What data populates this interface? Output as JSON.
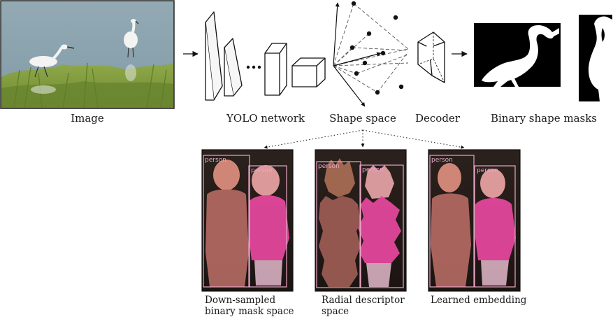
{
  "figure": {
    "pipeline_labels": {
      "image": "Image",
      "network": "YOLO network",
      "shape_space": "Shape space",
      "decoder": "Decoder",
      "masks": "Binary shape masks"
    },
    "variants": [
      {
        "line1": "Down-sampled",
        "line2": "binary mask space"
      },
      {
        "line1": "Radial descriptor",
        "line2": "space"
      },
      {
        "line1": "Learned embedding",
        "line2": ""
      }
    ],
    "detection_tag": "person",
    "colors": {
      "tag_pink": "#e9a6c9",
      "sky": "#8aa4b0",
      "grass": "#7f9a3a",
      "boy_overlay": "#c4706a",
      "girl_overlay": "#e0409a"
    },
    "icons": {
      "input_photo": "egret-photo",
      "decoder": "decoder-prism-icon",
      "network": "conv-layer-blocks"
    }
  }
}
